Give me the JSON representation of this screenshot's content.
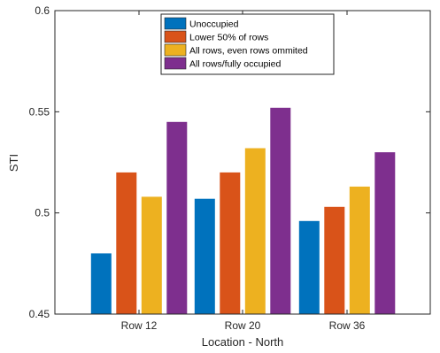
{
  "chart_data": {
    "type": "bar",
    "categories": [
      "Row 12",
      "Row 20",
      "Row 36"
    ],
    "series": [
      {
        "name": "Unoccupied",
        "values": [
          0.48,
          0.507,
          0.496
        ],
        "color": "#0072BD"
      },
      {
        "name": "Lower 50% of rows",
        "values": [
          0.52,
          0.52,
          0.503
        ],
        "color": "#D95319"
      },
      {
        "name": "All rows, even rows ommited",
        "values": [
          0.508,
          0.532,
          0.513
        ],
        "color": "#EDB120"
      },
      {
        "name": "All rows/fully occupied",
        "values": [
          0.545,
          0.552,
          0.53
        ],
        "color": "#7E2F8E"
      }
    ],
    "xlabel": "Location - North",
    "ylabel": "STI",
    "ylim": [
      0.45,
      0.6
    ],
    "yticks": [
      "0.45",
      "0.5",
      "0.55",
      "0.6"
    ],
    "legend_position": "top-center",
    "grid": false
  }
}
